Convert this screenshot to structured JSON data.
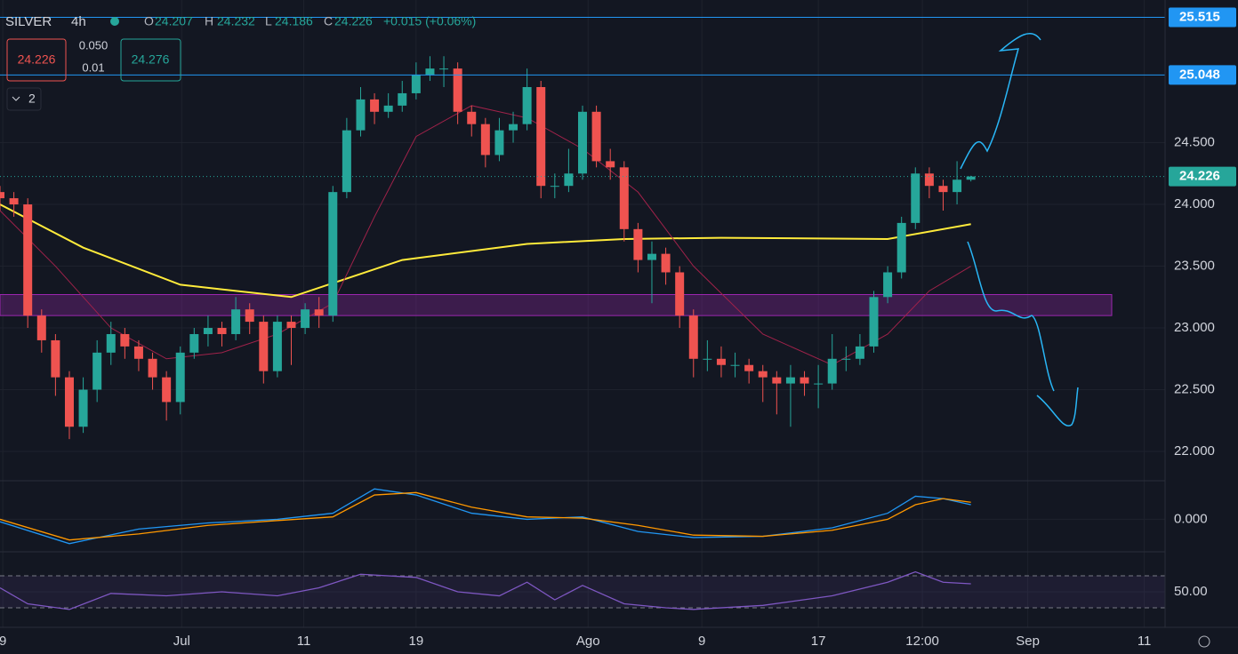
{
  "header": {
    "symbol": "SILVER",
    "interval": "4h",
    "o_label": "O",
    "o": "24.207",
    "h_label": "H",
    "h": "24.232",
    "l_label": "L",
    "l": "24.186",
    "c_label": "C",
    "c": "24.226",
    "change": "+0.015 (+0.06%)",
    "sell": "24.226",
    "spread_top": "0.050",
    "spread_bottom": "0.01",
    "buy": "24.276",
    "indicators": "2"
  },
  "chart_data": {
    "type": "candlestick",
    "up_color": "#26a69a",
    "down_color": "#ef5350",
    "xlim": [
      0,
      84
    ],
    "xticks": [
      {
        "value": 0.2,
        "label": "9"
      },
      {
        "value": 13.1,
        "label": "Jul"
      },
      {
        "value": 21.9,
        "label": "11"
      },
      {
        "value": 30,
        "label": "19"
      },
      {
        "value": 42.4,
        "label": "Ago"
      },
      {
        "value": 50.6,
        "label": "9"
      },
      {
        "value": 59,
        "label": "17"
      },
      {
        "value": 66.5,
        "label": "12:00"
      },
      {
        "value": 74.1,
        "label": "Sep"
      },
      {
        "value": 82.5,
        "label": "11"
      }
    ],
    "ylim": [
      21.77,
      25.655
    ],
    "yticks": [
      {
        "value": 22,
        "label": "22.000"
      },
      {
        "value": 22.5,
        "label": "22.500"
      },
      {
        "value": 23,
        "label": "23.000"
      },
      {
        "value": 23.5,
        "label": "23.500"
      },
      {
        "value": 24,
        "label": "24.000"
      },
      {
        "value": 24.5,
        "label": "24.500"
      }
    ],
    "levels": [
      {
        "value": 25.515,
        "label": "25.515",
        "color": "#2196f3"
      },
      {
        "value": 25.048,
        "label": "25.048",
        "color": "#2196f3"
      }
    ],
    "last_price": {
      "value": 24.226,
      "label": "24.226",
      "color": "#26a69a"
    },
    "zone": {
      "low": 23.1,
      "high": 23.27,
      "color": "#9c27b0"
    },
    "open": [
      24.1,
      24.05,
      24.0,
      23.1,
      22.9,
      22.6,
      22.2,
      22.5,
      22.8,
      22.95,
      22.85,
      22.75,
      22.6,
      22.4,
      22.8,
      22.95,
      23.0,
      22.95,
      23.15,
      23.05,
      22.65,
      23.05,
      23.0,
      23.15,
      23.1,
      24.1,
      24.6,
      24.85,
      24.75,
      24.8,
      24.9,
      25.05,
      25.1,
      25.1,
      24.75,
      24.65,
      24.4,
      24.6,
      24.65,
      24.95,
      24.15,
      24.15,
      24.25,
      24.75,
      24.35,
      24.3,
      23.8,
      23.55,
      23.6,
      23.45,
      23.1,
      22.75,
      22.75,
      22.7,
      22.7,
      22.65,
      22.6,
      22.55,
      22.6,
      22.55,
      22.55,
      22.75,
      22.75,
      22.85,
      23.25,
      23.45,
      23.85,
      24.25,
      24.15,
      24.1,
      24.2
    ],
    "high": [
      24.15,
      24.1,
      24.05,
      23.15,
      22.95,
      22.65,
      22.6,
      22.9,
      23.05,
      23.0,
      22.9,
      22.8,
      22.65,
      22.85,
      23.0,
      23.1,
      23.05,
      23.25,
      23.2,
      23.1,
      23.1,
      23.1,
      23.2,
      23.25,
      24.15,
      24.7,
      24.95,
      24.9,
      24.9,
      25.0,
      25.15,
      25.2,
      25.2,
      25.15,
      24.8,
      24.7,
      24.7,
      24.75,
      25.1,
      25.0,
      24.25,
      24.45,
      24.8,
      24.8,
      24.45,
      24.35,
      23.85,
      23.7,
      23.65,
      23.5,
      23.15,
      22.9,
      22.85,
      22.8,
      22.75,
      22.7,
      22.65,
      22.7,
      22.65,
      22.7,
      22.95,
      22.85,
      22.95,
      23.3,
      23.5,
      23.9,
      24.3,
      24.3,
      24.2,
      24.35,
      24.232
    ],
    "low": [
      23.95,
      23.9,
      23.0,
      22.8,
      22.45,
      22.1,
      22.15,
      22.4,
      22.7,
      22.75,
      22.65,
      22.5,
      22.25,
      22.3,
      22.75,
      22.85,
      22.85,
      22.9,
      22.95,
      22.55,
      22.6,
      22.7,
      22.95,
      23.0,
      23.05,
      24.05,
      24.55,
      24.65,
      24.7,
      24.75,
      24.85,
      25.0,
      24.95,
      24.65,
      24.55,
      24.3,
      24.35,
      24.5,
      24.6,
      24.05,
      24.05,
      24.1,
      24.2,
      24.3,
      24.2,
      23.7,
      23.45,
      23.2,
      23.35,
      23.0,
      22.6,
      22.65,
      22.6,
      22.6,
      22.55,
      22.4,
      22.3,
      22.2,
      22.45,
      22.35,
      22.5,
      22.65,
      22.7,
      22.8,
      23.2,
      23.4,
      23.8,
      24.05,
      23.95,
      24.0,
      24.186
    ],
    "close": [
      24.05,
      24.0,
      23.1,
      22.9,
      22.6,
      22.2,
      22.5,
      22.8,
      22.95,
      22.85,
      22.75,
      22.6,
      22.4,
      22.8,
      22.95,
      23.0,
      22.95,
      23.15,
      23.05,
      22.65,
      23.05,
      23.0,
      23.15,
      23.1,
      24.1,
      24.6,
      24.85,
      24.75,
      24.8,
      24.9,
      25.05,
      25.1,
      25.1,
      24.75,
      24.65,
      24.4,
      24.6,
      24.65,
      24.95,
      24.15,
      24.15,
      24.25,
      24.75,
      24.35,
      24.3,
      23.8,
      23.55,
      23.6,
      23.45,
      23.1,
      22.75,
      22.75,
      22.7,
      22.7,
      22.65,
      22.6,
      22.55,
      22.6,
      22.55,
      22.55,
      22.75,
      22.75,
      22.85,
      23.25,
      23.45,
      23.85,
      24.25,
      24.15,
      24.1,
      24.2,
      24.226
    ],
    "overlays": [
      {
        "color": "#ffeb3b",
        "x": [
          0,
          6,
          13,
          21,
          29,
          38,
          45,
          52,
          64,
          70
        ],
        "values": [
          24.0,
          23.65,
          23.35,
          23.25,
          23.55,
          23.68,
          23.72,
          23.73,
          23.72,
          23.84
        ]
      },
      {
        "color": "#a0224a",
        "x": [
          0,
          4,
          8,
          12,
          16,
          20,
          24,
          27,
          30,
          34,
          38,
          42,
          46,
          50,
          55,
          60,
          64,
          67,
          70
        ],
        "values": [
          23.95,
          23.5,
          23.0,
          22.75,
          22.8,
          22.95,
          23.2,
          23.9,
          24.55,
          24.8,
          24.7,
          24.45,
          24.1,
          23.5,
          22.95,
          22.7,
          22.95,
          23.3,
          23.5
        ]
      }
    ],
    "macd": {
      "ylim": [
        -0.26,
        0.31
      ],
      "yticks": [
        {
          "value": 0,
          "label": "0.000"
        }
      ],
      "x": [
        0,
        5,
        10,
        15,
        20,
        24,
        27,
        30,
        34,
        38,
        42,
        46,
        50,
        55,
        60,
        64,
        66,
        68,
        70
      ],
      "series": [
        {
          "color": "#2196f3",
          "values": [
            -0.02,
            -0.2,
            -0.08,
            -0.03,
            0.0,
            0.05,
            0.25,
            0.2,
            0.05,
            0.0,
            0.02,
            -0.1,
            -0.15,
            -0.14,
            -0.07,
            0.05,
            0.19,
            0.17,
            0.12
          ]
        },
        {
          "color": "#ff9800",
          "values": [
            0.0,
            -0.17,
            -0.12,
            -0.05,
            -0.01,
            0.02,
            0.2,
            0.22,
            0.1,
            0.02,
            0.01,
            -0.05,
            -0.13,
            -0.14,
            -0.09,
            0.0,
            0.12,
            0.17,
            0.14
          ]
        }
      ]
    },
    "rsi": {
      "ylim": [
        5.6,
        98.9
      ],
      "yticks": [
        {
          "value": 50,
          "label": "50.00"
        }
      ],
      "bands": [
        30,
        70
      ],
      "color": "#7e57c2",
      "x": [
        0,
        2,
        5,
        8,
        12,
        16,
        20,
        23,
        26,
        30,
        33,
        36,
        38,
        40,
        42,
        45,
        48,
        50,
        55,
        60,
        64,
        66,
        68,
        70
      ],
      "values": [
        55,
        35,
        28,
        48,
        45,
        50,
        45,
        55,
        72,
        68,
        50,
        45,
        62,
        40,
        58,
        35,
        30,
        28,
        33,
        45,
        62,
        75,
        62,
        60
      ]
    }
  }
}
